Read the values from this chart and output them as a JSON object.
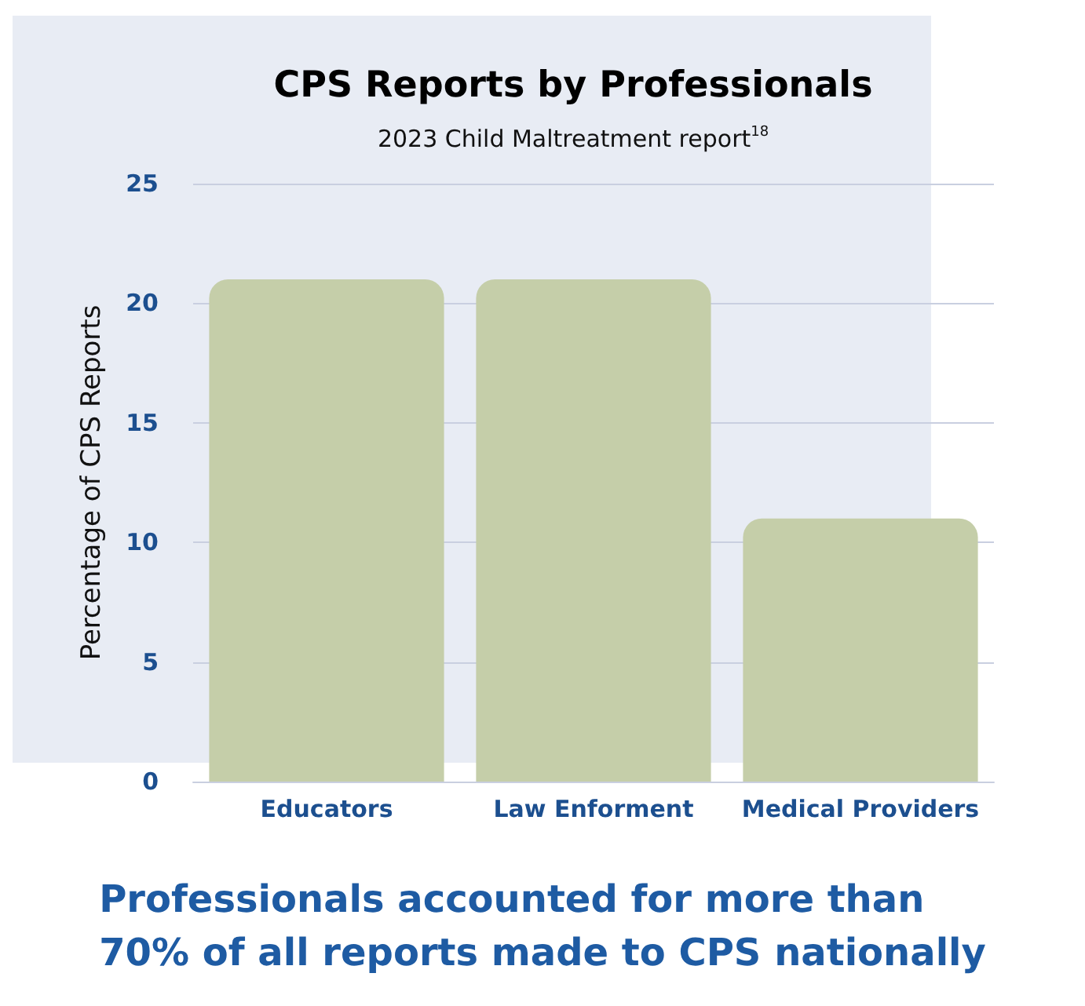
{
  "chart_data": {
    "type": "bar",
    "title": "CPS Reports by Professionals",
    "subtitle": "2023 Child Maltreatment report$^{18}$",
    "ylabel": "Percentage of CPS Reports",
    "categories": [
      "Educators",
      "Law Enforment",
      "Medical Providers"
    ],
    "values": [
      21,
      21,
      11
    ],
    "color": "#c5cea9",
    "ylim": [
      0,
      25
    ],
    "yticks": [
      0,
      5,
      10,
      15,
      20,
      25
    ],
    "grid": "y",
    "annotations": [
      "Professionals accounted for more than\n70% of all reports made to CPS nationally"
    ]
  }
}
